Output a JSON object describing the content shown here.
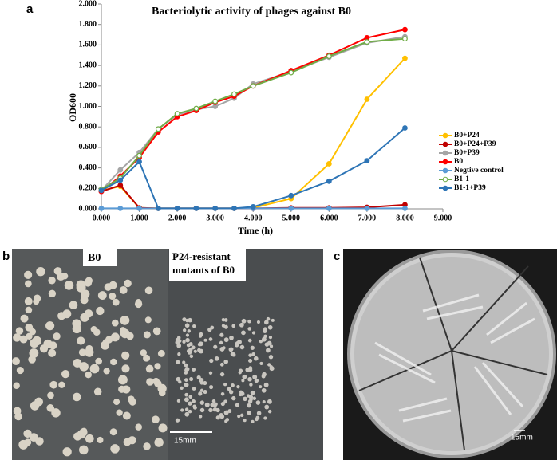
{
  "figure": {
    "panel_a": {
      "label": "a"
    },
    "panel_b": {
      "label": "b",
      "left_label": "B0",
      "right_label_lines": [
        "P24-resistant",
        "mutants of B0"
      ],
      "scale_bar": "15mm"
    },
    "panel_c": {
      "label": "c",
      "scale_bar": "15mm"
    }
  },
  "chart_data": {
    "type": "line",
    "title": "Bacteriolytic activity of phages against B0",
    "x_label": "Time (h)",
    "y_label": "OD600",
    "x": [
      0,
      0.5,
      1,
      1.5,
      2,
      2.5,
      3,
      3.5,
      4,
      5,
      6,
      7,
      8
    ],
    "xlim": [
      0,
      9
    ],
    "xticks": [
      {
        "value": 0,
        "label": "0.000"
      },
      {
        "value": 1,
        "label": "1.000"
      },
      {
        "value": 2,
        "label": "2.000"
      },
      {
        "value": 3,
        "label": "3.000"
      },
      {
        "value": 4,
        "label": "4.000"
      },
      {
        "value": 5,
        "label": "5.000"
      },
      {
        "value": 6,
        "label": "6.000"
      },
      {
        "value": 7,
        "label": "7.000"
      },
      {
        "value": 8,
        "label": "8.000"
      },
      {
        "value": 9,
        "label": "9.000"
      }
    ],
    "ylim": [
      0,
      2
    ],
    "yticks": [
      {
        "value": 0,
        "label": "0.000"
      },
      {
        "value": 0.2,
        "label": "0.200"
      },
      {
        "value": 0.4,
        "label": "0.400"
      },
      {
        "value": 0.6,
        "label": "0.600"
      },
      {
        "value": 0.8,
        "label": "0.800"
      },
      {
        "value": 1,
        "label": "1.000"
      },
      {
        "value": 1.2,
        "label": "1.200"
      },
      {
        "value": 1.4,
        "label": "1.400"
      },
      {
        "value": 1.6,
        "label": "1.600"
      },
      {
        "value": 1.8,
        "label": "1.800"
      },
      {
        "value": 2,
        "label": "2.000"
      }
    ],
    "series": [
      {
        "name": "B0+P24",
        "color": "#ffc000",
        "values": [
          0.18,
          0.22,
          0.01,
          0.005,
          0.005,
          0.005,
          0.005,
          0.005,
          0.01,
          0.1,
          0.44,
          1.07,
          1.47
        ]
      },
      {
        "name": "B0+P24+P39",
        "color": "#c00000",
        "values": [
          0.17,
          0.23,
          0.01,
          0.005,
          0.005,
          0.005,
          0.005,
          0.005,
          0.005,
          0.01,
          0.01,
          0.015,
          0.04
        ]
      },
      {
        "name": "B0+P39",
        "color": "#a5a5a5",
        "values": [
          0.18,
          0.38,
          0.55,
          0.78,
          0.92,
          0.97,
          1.0,
          1.08,
          1.22,
          1.34,
          1.48,
          1.62,
          1.68
        ]
      },
      {
        "name": "B0",
        "color": "#ff0000",
        "values": [
          0.17,
          0.32,
          0.5,
          0.75,
          0.9,
          0.96,
          1.04,
          1.1,
          1.2,
          1.35,
          1.5,
          1.67,
          1.75
        ]
      },
      {
        "name": "Negtive control",
        "color": "#5b9bd5",
        "values": [
          0.005,
          0.005,
          0.005,
          0.005,
          0.005,
          0.005,
          0.005,
          0.005,
          0.005,
          0.005,
          0.005,
          0.005,
          0.005
        ]
      },
      {
        "name": "B1-1",
        "color": "#70ad47",
        "hollow": true,
        "values": [
          0.19,
          0.3,
          0.52,
          0.78,
          0.93,
          0.98,
          1.05,
          1.12,
          1.2,
          1.33,
          1.49,
          1.63,
          1.66
        ]
      },
      {
        "name": "B1-1+P39",
        "color": "#2e75b6",
        "values": [
          0.18,
          0.28,
          0.46,
          0.005,
          0.005,
          0.005,
          0.005,
          0.005,
          0.02,
          0.13,
          0.27,
          0.47,
          0.79
        ]
      }
    ]
  }
}
